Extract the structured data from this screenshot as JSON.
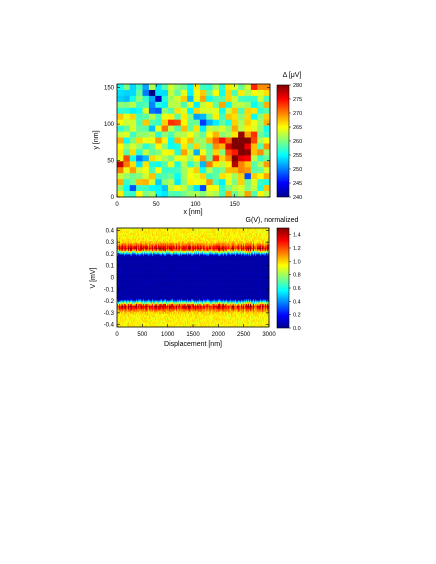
{
  "figure": {
    "panels": 2
  },
  "chart_data": [
    {
      "type": "heatmap",
      "title": "",
      "xlabel": "x [nm]",
      "ylabel": "y [nm]",
      "xlim": [
        0,
        195
      ],
      "ylim": [
        0,
        155
      ],
      "x_ticks": [
        0,
        50,
        100,
        150
      ],
      "y_ticks": [
        0,
        50,
        100,
        150
      ],
      "grid": [
        24,
        19
      ],
      "colormap": "jet",
      "colorbar": {
        "label": "Δ [μV]",
        "min": 240,
        "max": 280,
        "ticks": [
          240,
          245,
          250,
          255,
          260,
          265,
          270,
          275,
          280
        ]
      },
      "baseline": 262,
      "features": [
        {
          "kind": "hot",
          "cx": 150,
          "cy": 62,
          "r": 16,
          "amp": 16
        },
        {
          "kind": "hot",
          "cx": 162,
          "cy": 78,
          "r": 10,
          "amp": 10
        },
        {
          "kind": "hot",
          "cx": 8,
          "cy": 45,
          "r": 8,
          "amp": 15
        },
        {
          "kind": "hot",
          "cx": 178,
          "cy": 150,
          "r": 7,
          "amp": 13
        },
        {
          "kind": "hot",
          "cx": 70,
          "cy": 100,
          "r": 7,
          "amp": 7
        },
        {
          "kind": "cold",
          "cx": 50,
          "cy": 135,
          "r": 14,
          "amp": 14
        },
        {
          "kind": "cold",
          "cx": 110,
          "cy": 105,
          "r": 8,
          "amp": 11
        },
        {
          "kind": "cold",
          "cx": 10,
          "cy": 140,
          "r": 8,
          "amp": 9
        },
        {
          "kind": "cold",
          "cx": 95,
          "cy": 140,
          "r": 6,
          "amp": 8
        },
        {
          "kind": "cold",
          "cx": 60,
          "cy": 15,
          "r": 8,
          "amp": 9
        },
        {
          "kind": "cold",
          "cx": 30,
          "cy": 55,
          "r": 6,
          "amp": 8
        }
      ]
    },
    {
      "type": "heatmap",
      "title": "",
      "xlabel": "Displacement [nm]",
      "ylabel": "V [mV]",
      "xlim": [
        0,
        3000
      ],
      "ylim": [
        -0.42,
        0.42
      ],
      "x_ticks": [
        0,
        500,
        1000,
        1500,
        2000,
        2500,
        3000
      ],
      "y_ticks": [
        -0.4,
        -0.3,
        -0.2,
        -0.1,
        0,
        0.1,
        0.2,
        0.3,
        0.4
      ],
      "colormap": "jet",
      "gap_edge_mV": 0.2,
      "peak_mV": 0.24,
      "peak_value": 1.35,
      "background_value": 0.95,
      "colorbar": {
        "label": "G(V), normalized",
        "min": 0.0,
        "max": 1.5,
        "ticks": [
          0.0,
          0.2,
          0.4,
          0.6,
          0.8,
          1.0,
          1.2,
          1.4
        ]
      }
    }
  ]
}
